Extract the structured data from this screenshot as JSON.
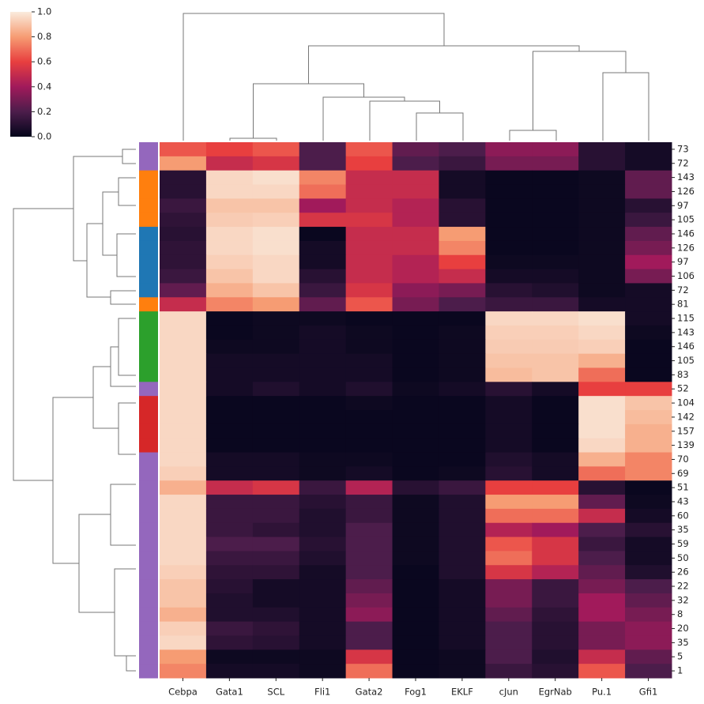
{
  "chart_data": {
    "type": "heatmap",
    "columns": [
      "Cebpa",
      "Gata1",
      "SCL",
      "Fli1",
      "Gata2",
      "Fog1",
      "EKLF",
      "cJun",
      "EgrNab",
      "Pu.1",
      "Gfi1"
    ],
    "rows": [
      "73",
      "72",
      "143",
      "126",
      "97",
      "105",
      "146",
      "126",
      "97",
      "106",
      "72",
      "81",
      "115",
      "143",
      "146",
      "105",
      "83",
      "52",
      "104",
      "142",
      "157",
      "139",
      "70",
      "69",
      "51",
      "43",
      "60",
      "35",
      "59",
      "50",
      "26",
      "22",
      "32",
      "8",
      "20",
      "35",
      "5",
      "1"
    ],
    "values": [
      [
        0.65,
        0.6,
        0.65,
        0.2,
        0.65,
        0.25,
        0.2,
        0.35,
        0.35,
        0.1,
        0.05
      ],
      [
        0.8,
        0.5,
        0.55,
        0.2,
        0.6,
        0.2,
        0.15,
        0.3,
        0.3,
        0.1,
        0.05
      ],
      [
        0.1,
        0.95,
        0.97,
        0.75,
        0.5,
        0.5,
        0.05,
        0.02,
        0.02,
        0.03,
        0.25
      ],
      [
        0.1,
        0.95,
        0.95,
        0.7,
        0.5,
        0.5,
        0.05,
        0.02,
        0.02,
        0.03,
        0.25
      ],
      [
        0.15,
        0.9,
        0.9,
        0.4,
        0.5,
        0.45,
        0.1,
        0.02,
        0.02,
        0.03,
        0.1
      ],
      [
        0.12,
        0.92,
        0.93,
        0.55,
        0.55,
        0.45,
        0.1,
        0.02,
        0.02,
        0.03,
        0.15
      ],
      [
        0.1,
        0.95,
        0.97,
        0.02,
        0.5,
        0.5,
        0.8,
        0.02,
        0.02,
        0.03,
        0.25
      ],
      [
        0.12,
        0.95,
        0.97,
        0.05,
        0.5,
        0.5,
        0.75,
        0.02,
        0.02,
        0.03,
        0.3
      ],
      [
        0.12,
        0.93,
        0.95,
        0.05,
        0.5,
        0.45,
        0.6,
        0.03,
        0.03,
        0.03,
        0.4
      ],
      [
        0.15,
        0.9,
        0.95,
        0.1,
        0.5,
        0.45,
        0.5,
        0.05,
        0.05,
        0.03,
        0.3
      ],
      [
        0.25,
        0.85,
        0.9,
        0.15,
        0.55,
        0.35,
        0.3,
        0.1,
        0.08,
        0.03,
        0.05
      ],
      [
        0.5,
        0.75,
        0.8,
        0.25,
        0.65,
        0.3,
        0.2,
        0.15,
        0.15,
        0.05,
        0.05
      ],
      [
        0.95,
        0.02,
        0.03,
        0.03,
        0.02,
        0.02,
        0.02,
        0.95,
        0.95,
        0.97,
        0.05
      ],
      [
        0.95,
        0.02,
        0.03,
        0.05,
        0.03,
        0.02,
        0.03,
        0.93,
        0.93,
        0.95,
        0.03
      ],
      [
        0.95,
        0.03,
        0.03,
        0.05,
        0.03,
        0.02,
        0.03,
        0.92,
        0.92,
        0.93,
        0.02
      ],
      [
        0.95,
        0.05,
        0.05,
        0.05,
        0.05,
        0.02,
        0.03,
        0.9,
        0.9,
        0.85,
        0.02
      ],
      [
        0.95,
        0.05,
        0.05,
        0.05,
        0.05,
        0.02,
        0.03,
        0.88,
        0.9,
        0.7,
        0.02
      ],
      [
        0.95,
        0.05,
        0.08,
        0.05,
        0.08,
        0.03,
        0.05,
        0.1,
        0.05,
        0.6,
        0.6
      ],
      [
        0.95,
        0.02,
        0.02,
        0.02,
        0.03,
        0.02,
        0.02,
        0.05,
        0.02,
        0.97,
        0.9
      ],
      [
        0.95,
        0.02,
        0.02,
        0.02,
        0.02,
        0.02,
        0.02,
        0.05,
        0.02,
        0.97,
        0.88
      ],
      [
        0.95,
        0.02,
        0.02,
        0.02,
        0.02,
        0.02,
        0.02,
        0.05,
        0.02,
        0.97,
        0.85
      ],
      [
        0.95,
        0.02,
        0.02,
        0.02,
        0.02,
        0.02,
        0.02,
        0.05,
        0.02,
        0.95,
        0.85
      ],
      [
        0.95,
        0.05,
        0.05,
        0.03,
        0.03,
        0.02,
        0.02,
        0.08,
        0.05,
        0.85,
        0.75
      ],
      [
        0.93,
        0.05,
        0.05,
        0.03,
        0.05,
        0.02,
        0.03,
        0.1,
        0.05,
        0.7,
        0.75
      ],
      [
        0.85,
        0.5,
        0.55,
        0.15,
        0.45,
        0.1,
        0.15,
        0.6,
        0.6,
        0.1,
        0.02
      ],
      [
        0.95,
        0.15,
        0.15,
        0.1,
        0.15,
        0.03,
        0.08,
        0.8,
        0.8,
        0.25,
        0.03
      ],
      [
        0.95,
        0.15,
        0.15,
        0.08,
        0.15,
        0.03,
        0.08,
        0.7,
        0.7,
        0.5,
        0.05
      ],
      [
        0.95,
        0.15,
        0.12,
        0.08,
        0.2,
        0.03,
        0.08,
        0.45,
        0.4,
        0.2,
        0.1
      ],
      [
        0.95,
        0.2,
        0.2,
        0.1,
        0.2,
        0.03,
        0.08,
        0.65,
        0.55,
        0.15,
        0.05
      ],
      [
        0.95,
        0.15,
        0.15,
        0.08,
        0.2,
        0.03,
        0.08,
        0.7,
        0.55,
        0.2,
        0.05
      ],
      [
        0.93,
        0.12,
        0.12,
        0.05,
        0.2,
        0.02,
        0.08,
        0.55,
        0.45,
        0.25,
        0.08
      ],
      [
        0.9,
        0.1,
        0.05,
        0.05,
        0.25,
        0.02,
        0.05,
        0.3,
        0.15,
        0.3,
        0.2
      ],
      [
        0.9,
        0.08,
        0.05,
        0.05,
        0.3,
        0.02,
        0.05,
        0.3,
        0.15,
        0.4,
        0.25
      ],
      [
        0.85,
        0.08,
        0.08,
        0.05,
        0.35,
        0.02,
        0.05,
        0.25,
        0.12,
        0.4,
        0.3
      ],
      [
        0.93,
        0.15,
        0.12,
        0.05,
        0.2,
        0.02,
        0.05,
        0.2,
        0.1,
        0.3,
        0.35
      ],
      [
        0.95,
        0.12,
        0.1,
        0.05,
        0.2,
        0.02,
        0.05,
        0.2,
        0.1,
        0.3,
        0.35
      ],
      [
        0.8,
        0.03,
        0.03,
        0.03,
        0.55,
        0.02,
        0.03,
        0.2,
        0.08,
        0.5,
        0.25
      ],
      [
        0.75,
        0.05,
        0.05,
        0.03,
        0.7,
        0.02,
        0.03,
        0.15,
        0.1,
        0.65,
        0.2
      ]
    ],
    "row_colors": [
      "#9467bd",
      "#9467bd",
      "#ff7f0e",
      "#ff7f0e",
      "#ff7f0e",
      "#ff7f0e",
      "#1f77b4",
      "#1f77b4",
      "#1f77b4",
      "#1f77b4",
      "#1f77b4",
      "#ff7f0e",
      "#2ca02c",
      "#2ca02c",
      "#2ca02c",
      "#2ca02c",
      "#2ca02c",
      "#9467bd",
      "#d62728",
      "#d62728",
      "#d62728",
      "#d62728",
      "#9467bd",
      "#9467bd",
      "#9467bd",
      "#9467bd",
      "#9467bd",
      "#9467bd",
      "#9467bd",
      "#9467bd",
      "#9467bd",
      "#9467bd",
      "#9467bd",
      "#9467bd",
      "#9467bd",
      "#9467bd",
      "#9467bd",
      "#9467bd"
    ],
    "cmap": [
      "#03051a",
      "#4c1d4b",
      "#a11a5b",
      "#e83f3f",
      "#f69c73",
      "#faebdd"
    ],
    "clim": [
      0,
      1
    ],
    "colorbar_ticks": [
      {
        "value": 0,
        "label": "0.0"
      },
      {
        "value": 0.2,
        "label": "0.2"
      },
      {
        "value": 0.4,
        "label": "0.4"
      },
      {
        "value": 0.6,
        "label": "0.6"
      },
      {
        "value": 0.8,
        "label": "0.8"
      },
      {
        "value": 1,
        "label": "1.0"
      }
    ]
  }
}
